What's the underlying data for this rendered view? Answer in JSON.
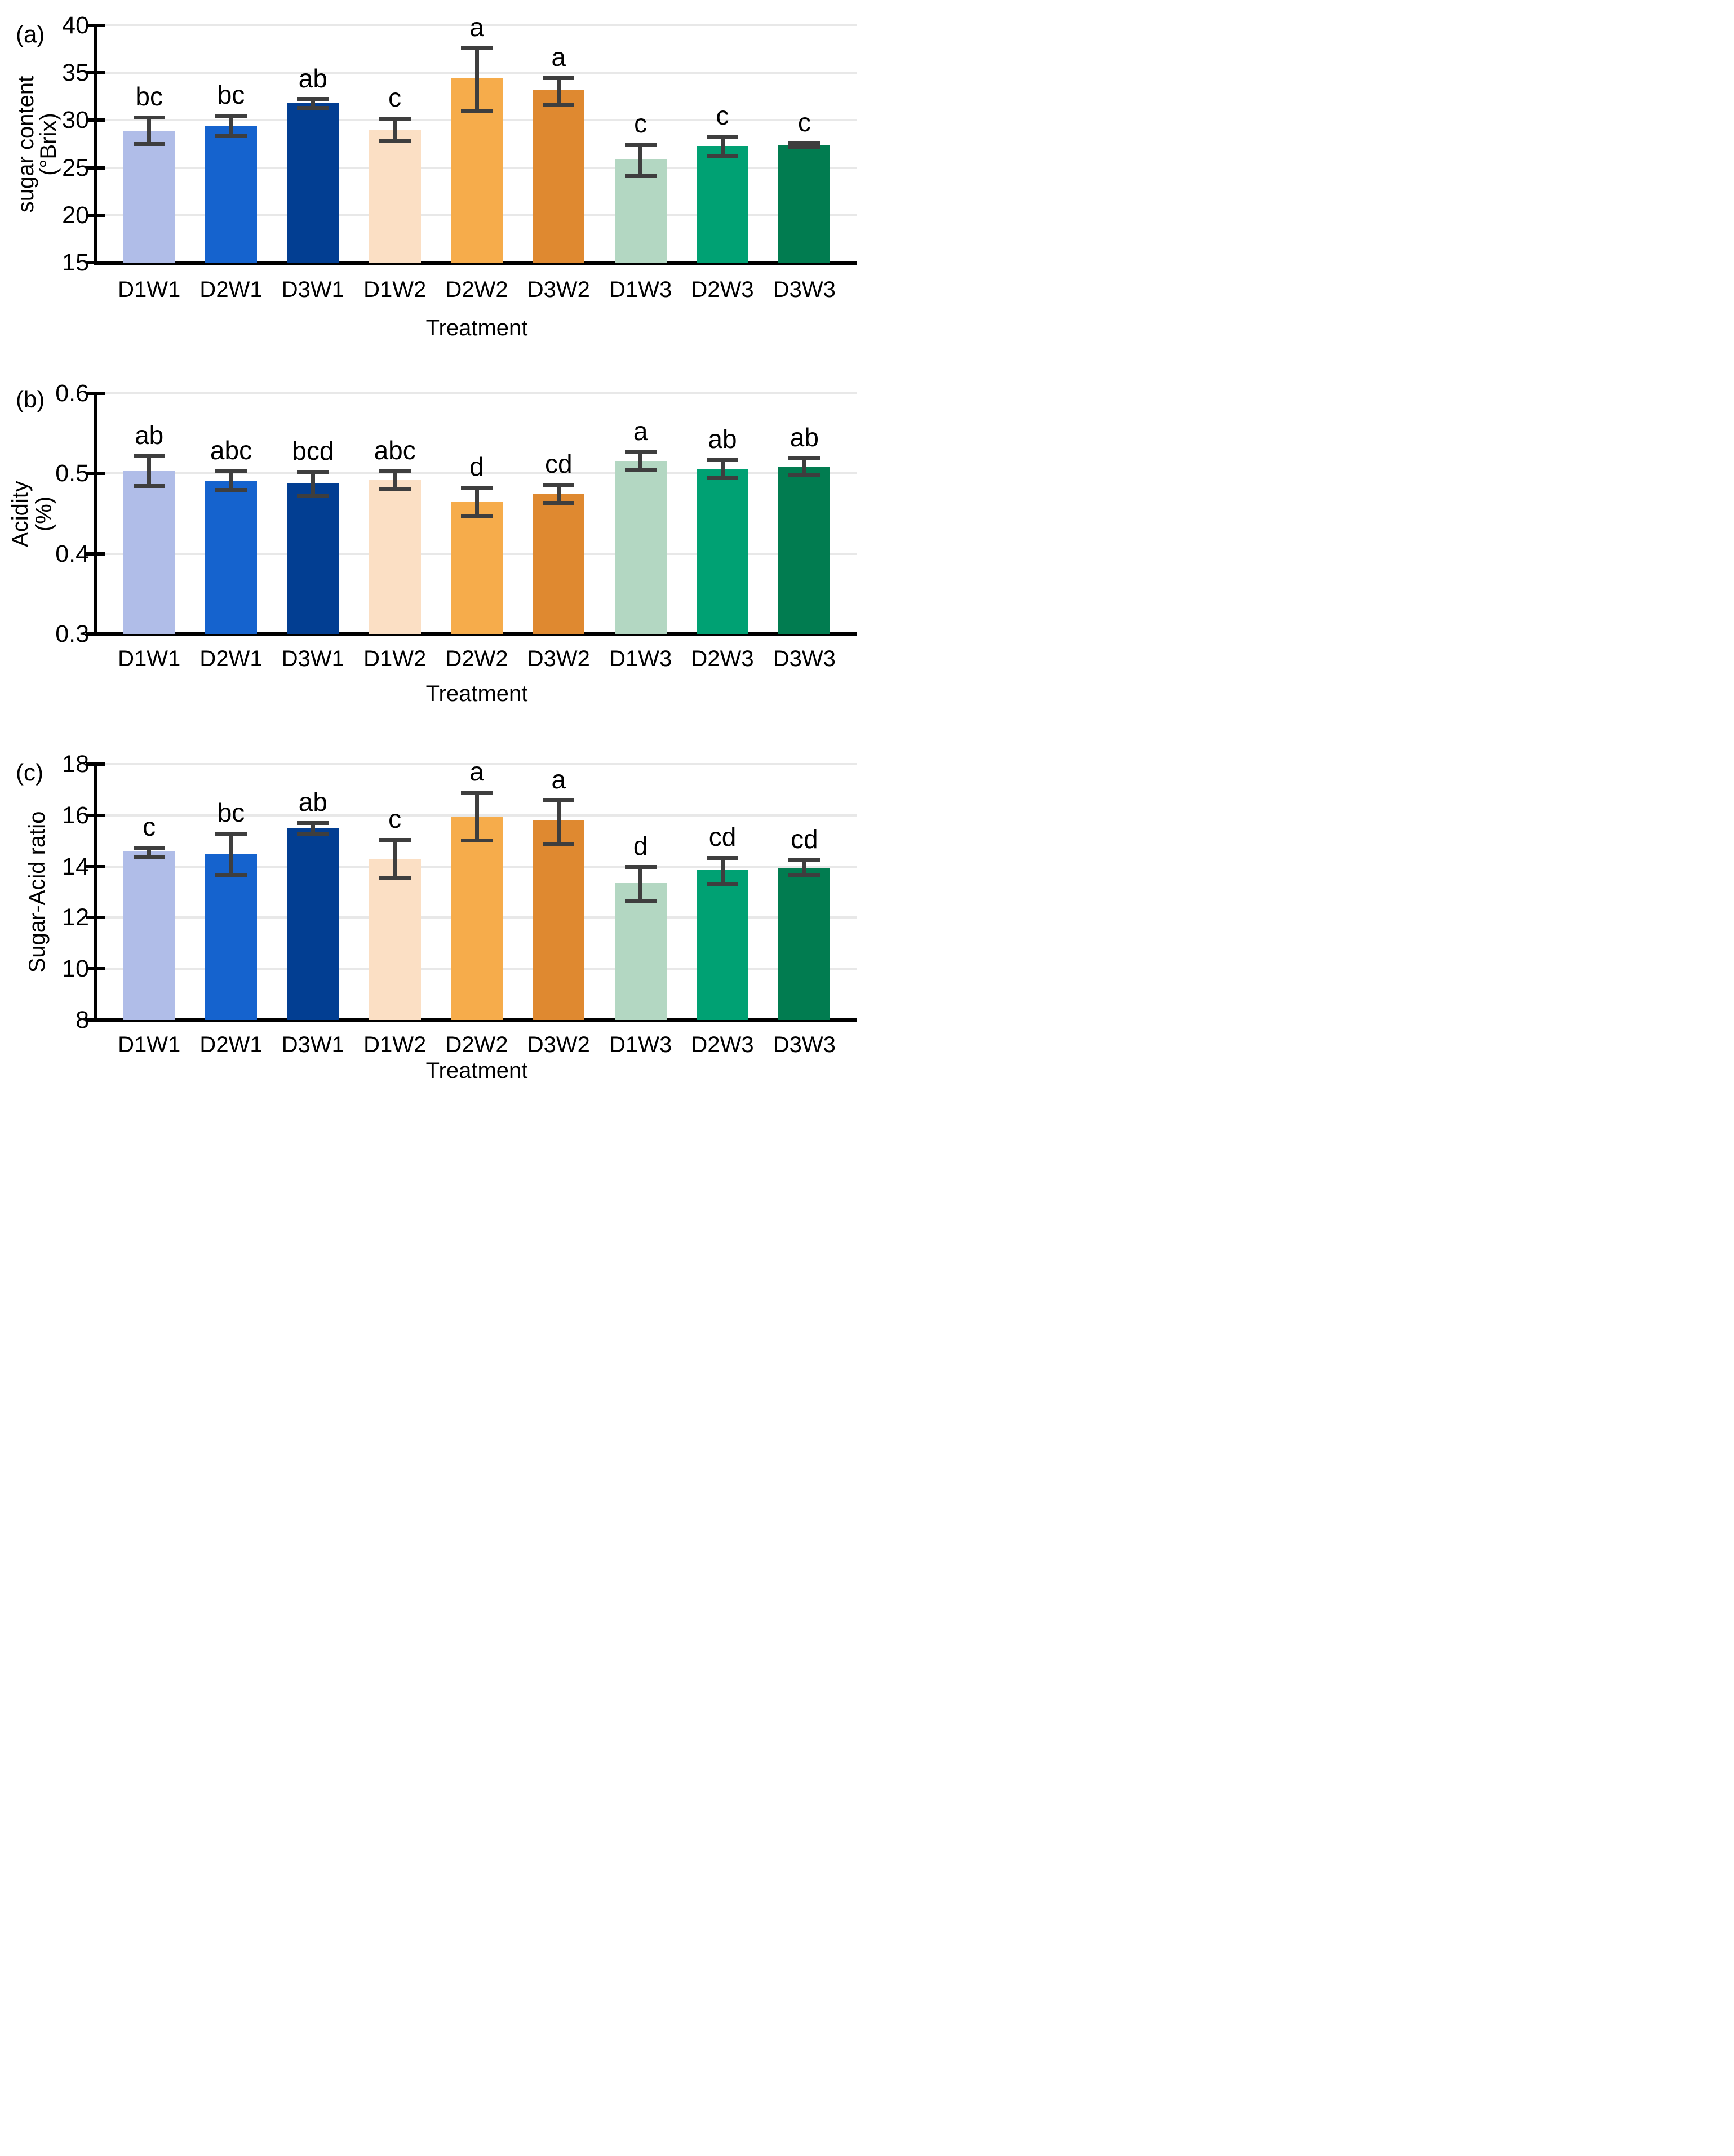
{
  "figure": {
    "background": "#ffffff"
  },
  "treatments": [
    "D1W1",
    "D2W1",
    "D3W1",
    "D1W2",
    "D2W2",
    "D3W2",
    "D1W3",
    "D2W3",
    "D3W3"
  ],
  "bar_colors": [
    "#b0bde8",
    "#1563ce",
    "#023e92",
    "#fbdfc4",
    "#f6ac4b",
    "#df8930",
    "#b3d7c2",
    "#00a173",
    "#017c50"
  ],
  "error_bar_color": "#3e3e3e",
  "grid_color": "#e8e8e8",
  "axis_color": "#000000",
  "panels": [
    {
      "tag": "(a)",
      "y_title_lines": [
        "sugar content",
        "(°Brix)"
      ]
    },
    {
      "tag": "(b)",
      "y_title_lines": [
        "Acidity",
        "(%)"
      ]
    },
    {
      "tag": "(c)",
      "y_title_lines": [
        "Sugar-Acid ratio"
      ]
    }
  ],
  "chart_data": [
    {
      "type": "bar",
      "panel": "a",
      "title": "",
      "ylabel": "sugar content (°Brix)",
      "xlabel": "Treatment",
      "ylim": [
        15,
        40
      ],
      "yticks": [
        15,
        20,
        25,
        30,
        35,
        40
      ],
      "grid": true,
      "legend": false,
      "categories": [
        "D1W1",
        "D2W1",
        "D3W1",
        "D1W2",
        "D2W2",
        "D3W2",
        "D1W3",
        "D2W3",
        "D3W3"
      ],
      "values": [
        28.9,
        29.4,
        31.8,
        29.0,
        34.4,
        33.2,
        25.9,
        27.3,
        27.4
      ],
      "error_low": [
        27.5,
        28.3,
        31.3,
        27.8,
        31.0,
        31.6,
        24.1,
        26.2,
        27.1
      ],
      "error_high": [
        30.3,
        30.5,
        32.2,
        30.2,
        37.6,
        34.5,
        27.5,
        28.3,
        27.6
      ],
      "sig_letters": [
        "bc",
        "bc",
        "ab",
        "c",
        "a",
        "a",
        "c",
        "c",
        "c"
      ]
    },
    {
      "type": "bar",
      "panel": "b",
      "title": "",
      "ylabel": "Acidity (%)",
      "xlabel": "Treatment",
      "ylim": [
        0.3,
        0.6
      ],
      "yticks": [
        0.3,
        0.4,
        0.5,
        0.6
      ],
      "grid": true,
      "legend": false,
      "categories": [
        "D1W1",
        "D2W1",
        "D3W1",
        "D1W2",
        "D2W2",
        "D3W2",
        "D1W3",
        "D2W3",
        "D3W3"
      ],
      "values": [
        0.504,
        0.491,
        0.488,
        0.492,
        0.465,
        0.475,
        0.516,
        0.506,
        0.509
      ],
      "error_low": [
        0.484,
        0.479,
        0.472,
        0.48,
        0.446,
        0.463,
        0.504,
        0.494,
        0.498
      ],
      "error_high": [
        0.522,
        0.503,
        0.502,
        0.503,
        0.483,
        0.486,
        0.527,
        0.517,
        0.519
      ],
      "sig_letters": [
        "ab",
        "abc",
        "bcd",
        "abc",
        "d",
        "cd",
        "a",
        "ab",
        "ab"
      ]
    },
    {
      "type": "bar",
      "panel": "c",
      "title": "",
      "ylabel": "Sugar-Acid ratio",
      "xlabel": "Treatment",
      "ylim": [
        8,
        18
      ],
      "yticks": [
        8,
        10,
        12,
        14,
        16,
        18
      ],
      "grid": true,
      "legend": false,
      "categories": [
        "D1W1",
        "D2W1",
        "D3W1",
        "D1W2",
        "D2W2",
        "D3W2",
        "D1W3",
        "D2W3",
        "D3W3"
      ],
      "values": [
        14.6,
        14.5,
        15.5,
        14.3,
        15.95,
        15.8,
        13.35,
        13.85,
        13.95
      ],
      "error_low": [
        14.35,
        13.65,
        15.25,
        13.55,
        15.0,
        14.85,
        12.65,
        13.3,
        13.65
      ],
      "error_high": [
        14.75,
        15.3,
        15.7,
        15.05,
        16.9,
        16.6,
        14.0,
        14.35,
        14.25
      ],
      "sig_letters": [
        "c",
        "bc",
        "ab",
        "c",
        "a",
        "a",
        "d",
        "cd",
        "cd"
      ]
    }
  ]
}
